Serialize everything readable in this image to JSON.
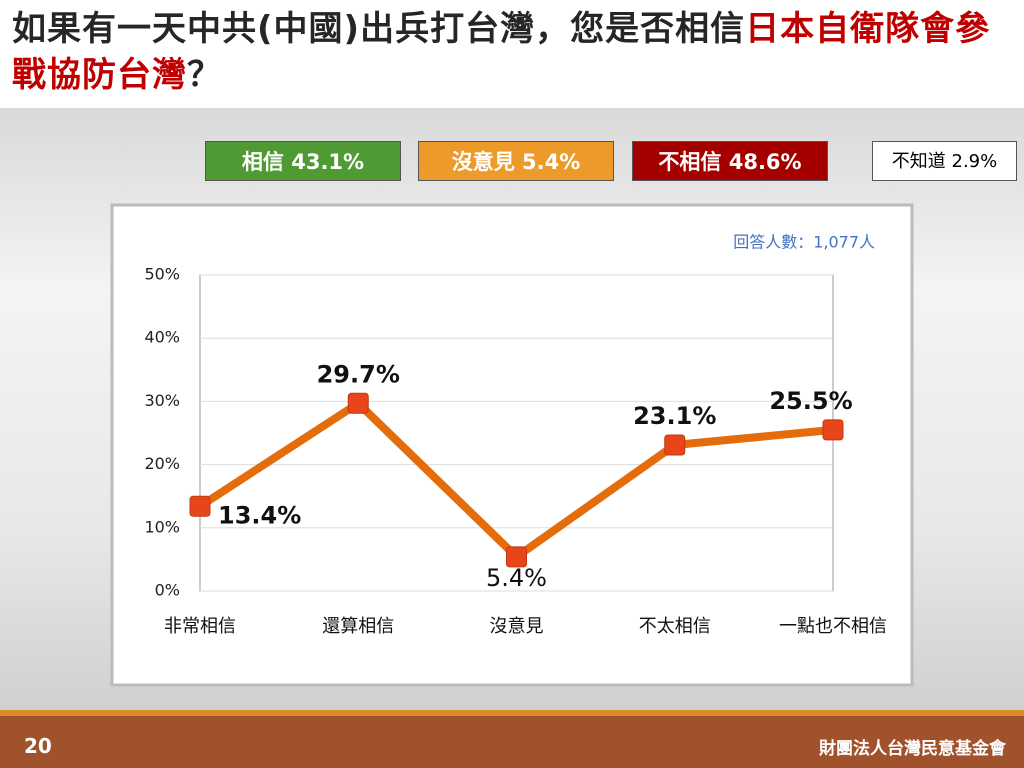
{
  "header": {
    "title_parts": [
      "如果有一天中共(中國)出兵打台灣，您是否相信",
      "日本自衛隊會參戰協防台灣",
      "？"
    ]
  },
  "summary": [
    "相信 43.1%",
    "沒意見 5.4%",
    "不相信 48.6%",
    "不知道 2.9%"
  ],
  "chart_data": {
    "type": "line",
    "note": "回答人數：1,077人",
    "categories": [
      "非常相信",
      "還算相信",
      "沒意見",
      "不太相信",
      "一點也不相信"
    ],
    "values": [
      13.4,
      29.7,
      5.4,
      23.1,
      25.5
    ],
    "value_labels": [
      "13.4%",
      "29.7%",
      "5.4%",
      "23.1%",
      "25.5%"
    ],
    "color": "#e46c0a",
    "ylim": [
      0,
      50
    ],
    "yticks": [
      {
        "value": 0,
        "label": "0%"
      },
      {
        "value": 10,
        "label": "10%"
      },
      {
        "value": 20,
        "label": "20%"
      },
      {
        "value": 30,
        "label": "30%"
      },
      {
        "value": 40,
        "label": "40%"
      },
      {
        "value": 50,
        "label": "50%"
      }
    ],
    "grid": true
  },
  "footer": {
    "page": "20",
    "org": "財團法人台灣民意基金會"
  }
}
